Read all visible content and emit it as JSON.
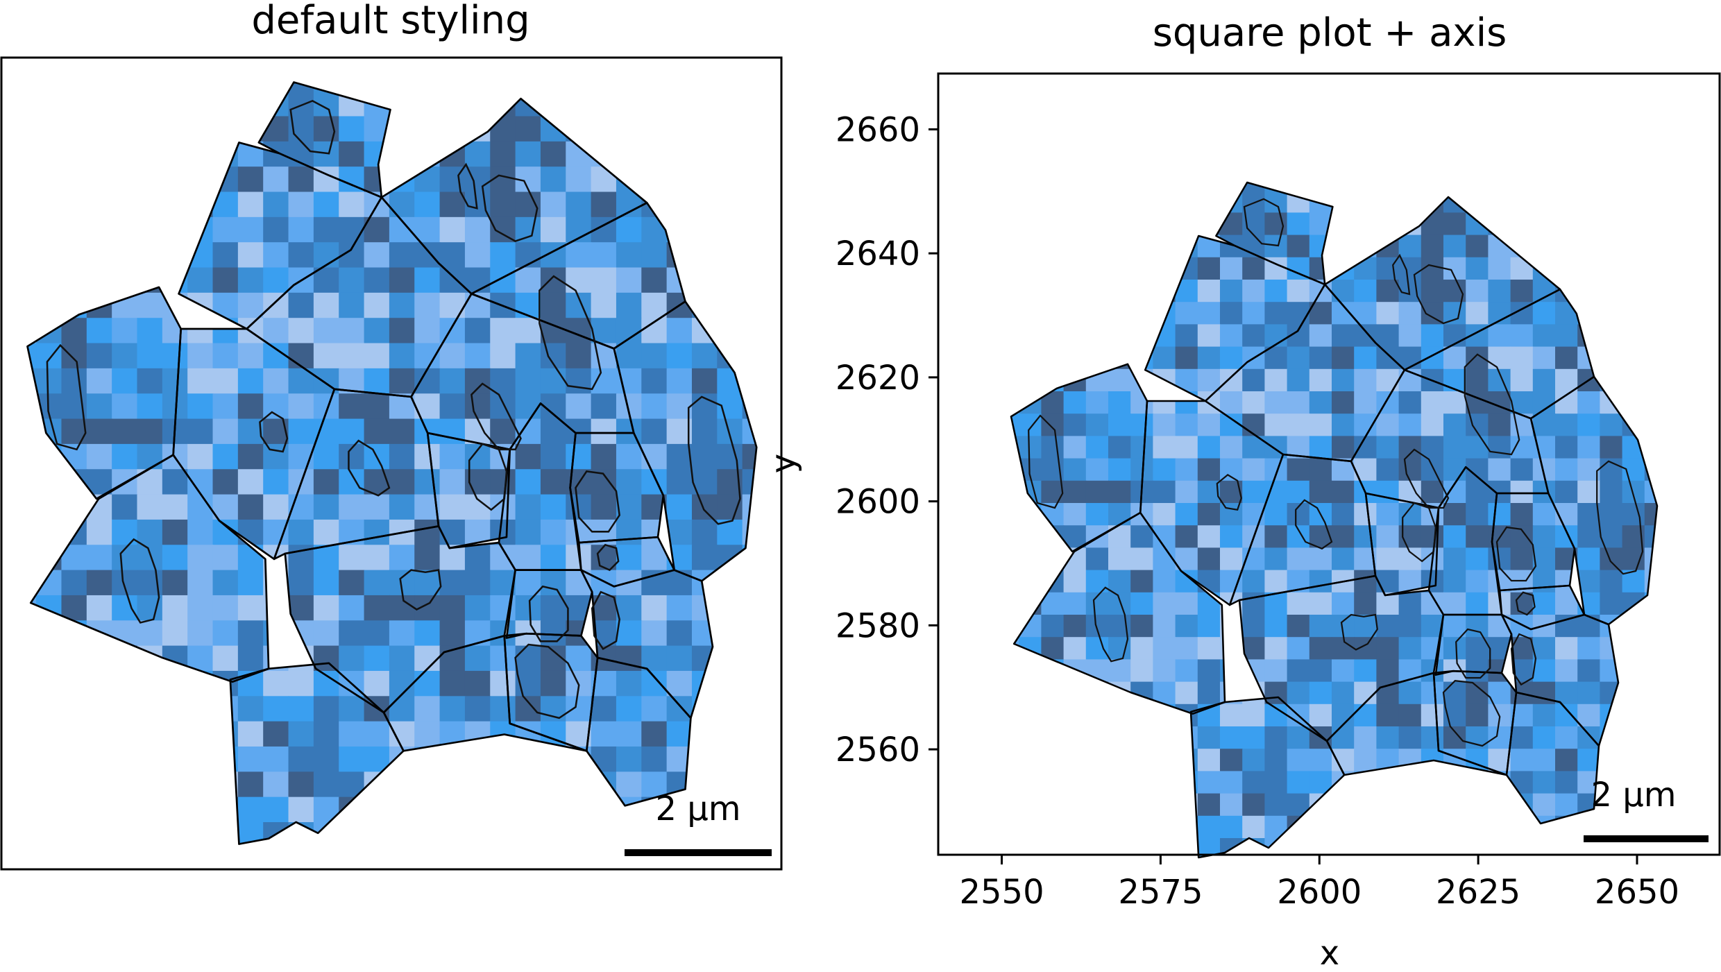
{
  "panels": [
    {
      "title": "default styling",
      "show_axes": false,
      "scalebar_label": "2 µm"
    },
    {
      "title": "square plot + axis",
      "show_axes": true,
      "xlabel": "x",
      "ylabel": "y",
      "xticks": [
        "2550",
        "2575",
        "2600",
        "2625",
        "2650"
      ],
      "yticks": [
        "2560",
        "2580",
        "2600",
        "2620",
        "2640",
        "2660"
      ],
      "scalebar_label": "2 µm"
    }
  ],
  "chart_data": [
    {
      "type": "heatmap",
      "title": "default styling",
      "description_kind": "cell segmentation overlay (pixel intensity image with cell and nucleus boundary polygons)",
      "colormap": [
        "#a7c7f0",
        "#7fb4f0",
        "#5ea8f0",
        "#3a9ff0",
        "#3b8fd6",
        "#3878b8",
        "#3d5f8a"
      ],
      "xlim": [
        2540,
        2663
      ],
      "ylim": [
        2543,
        2669
      ],
      "grid": false,
      "scalebar": "2 µm"
    },
    {
      "type": "heatmap",
      "title": "square plot + axis",
      "xlabel": "x",
      "ylabel": "y",
      "xlim": [
        2540,
        2663
      ],
      "ylim": [
        2543,
        2669
      ],
      "xticks": [
        2550,
        2575,
        2600,
        2625,
        2650
      ],
      "yticks": [
        2560,
        2580,
        2600,
        2620,
        2640,
        2660
      ],
      "grid": false,
      "scalebar": "2 µm"
    }
  ]
}
